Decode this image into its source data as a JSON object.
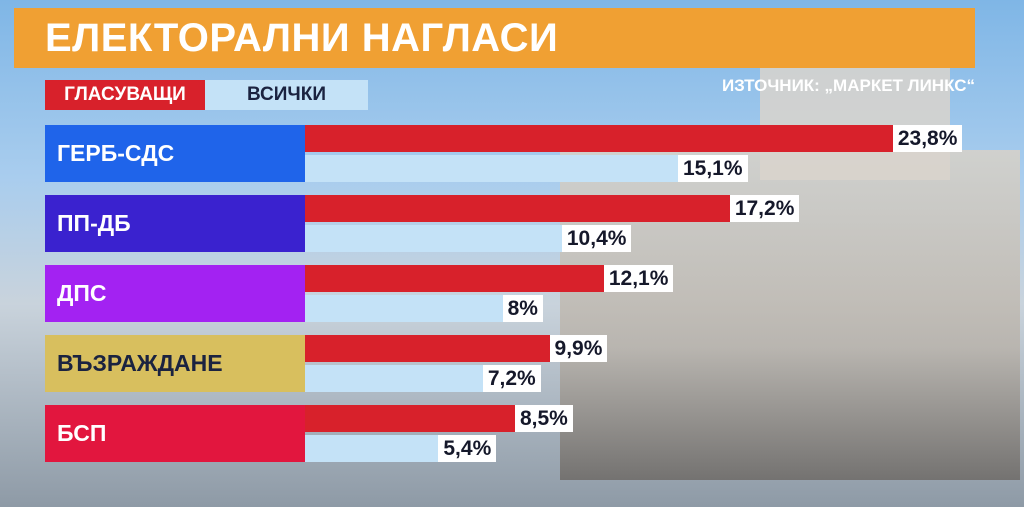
{
  "chart_data": {
    "type": "bar",
    "orientation": "horizontal",
    "title": "ЕЛЕКТОРАЛНИ НАГЛАСИ",
    "source": "ИЗТОЧНИК: „МАРКЕТ ЛИНКС“",
    "categories": [
      "ГЕРБ-СДС",
      "ПП-ДБ",
      "ДПС",
      "ВЪЗРАЖДАНЕ",
      "БСП"
    ],
    "category_colors": [
      "#1f64ea",
      "#3a22cf",
      "#a322f2",
      "#d8bf5e",
      "#e2163e"
    ],
    "series": [
      {
        "name": "ГЛАСУВАЩИ",
        "color": "#d8212b",
        "values": [
          23.8,
          17.2,
          12.1,
          9.9,
          8.5
        ],
        "value_labels": [
          "23,8%",
          "17,2%",
          "12,1%",
          "9,9%",
          "8,5%"
        ]
      },
      {
        "name": "ВСИЧКИ",
        "color": "#c4e2f7",
        "values": [
          15.1,
          10.4,
          8,
          7.2,
          5.4
        ],
        "value_labels": [
          "15,1%",
          "10,4%",
          "8%",
          "7,2%",
          "5,4%"
        ]
      }
    ]
  }
}
